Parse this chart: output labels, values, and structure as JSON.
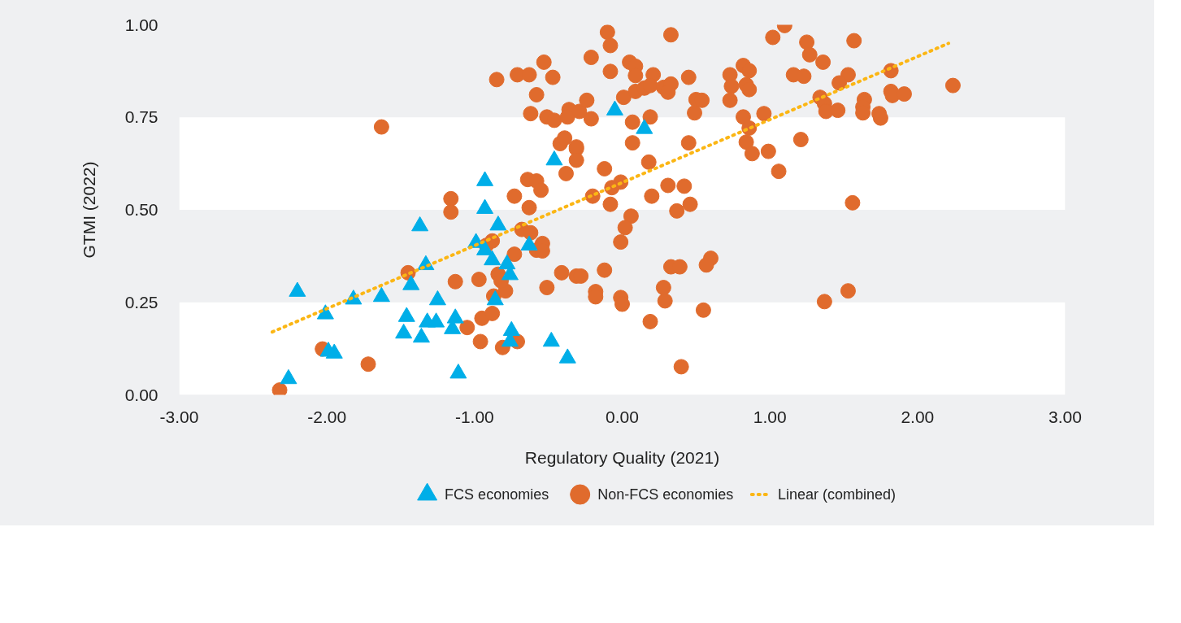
{
  "chart_data": {
    "type": "scatter",
    "xlabel": "Regulatory Quality (2021)",
    "ylabel": "GTMI (2022)",
    "xlim": [
      -3,
      3
    ],
    "xticks": [
      {
        "value": -3,
        "label": "-3.00"
      },
      {
        "value": -2,
        "label": "-2.00"
      },
      {
        "value": -1,
        "label": "-1.00"
      },
      {
        "value": 0,
        "label": "0.00"
      },
      {
        "value": 1,
        "label": "1.00"
      },
      {
        "value": 2,
        "label": "2.00"
      },
      {
        "value": 3,
        "label": "3.00"
      }
    ],
    "ylim": [
      0,
      1
    ],
    "yticks": [
      {
        "value": 0,
        "label": "0.00"
      },
      {
        "value": 0.25,
        "label": "0.25"
      },
      {
        "value": 0.5,
        "label": "0.50"
      },
      {
        "value": 0.75,
        "label": "0.75"
      },
      {
        "value": 1,
        "label": "1.00"
      }
    ],
    "bands": [
      {
        "axis": "y",
        "from": 0,
        "to": 0.25,
        "color": "#ffffff"
      },
      {
        "axis": "y",
        "from": 0.5,
        "to": 0.75,
        "color": "#ffffff"
      }
    ],
    "legend": "bottom",
    "series": [
      {
        "name": "FCS economies",
        "color": "#00aee8",
        "marker": "triangle",
        "x": [
          -2.26,
          -2.2,
          -2.01,
          -1.99,
          -1.95,
          -1.82,
          -1.63,
          -1.48,
          -1.46,
          -1.43,
          -1.37,
          -1.36,
          -1.33,
          -1.32,
          -1.25,
          -1.26,
          -1.15,
          -1.13,
          -1.11,
          -0.99,
          -0.93,
          -0.93,
          -0.93,
          -0.88,
          -0.84,
          -0.78,
          -0.76,
          -0.63,
          -0.86,
          -0.75,
          -0.76,
          -0.48,
          -0.37,
          -0.05,
          0.15,
          -0.46
        ],
        "values": [
          0.043,
          0.279,
          0.218,
          0.117,
          0.112,
          0.258,
          0.265,
          0.166,
          0.211,
          0.297,
          0.456,
          0.155,
          0.351,
          0.196,
          0.256,
          0.196,
          0.178,
          0.207,
          0.058,
          0.411,
          0.578,
          0.503,
          0.391,
          0.364,
          0.458,
          0.353,
          0.324,
          0.404,
          0.256,
          0.173,
          0.144,
          0.144,
          0.099,
          0.769,
          0.719,
          0.634
        ]
      },
      {
        "name": "Non-FCS economies",
        "color": "#e06b2d",
        "marker": "circle",
        "x": [
          -2.32,
          -2.03,
          -1.72,
          -1.45,
          -1.16,
          -1.16,
          -1.13,
          -0.97,
          -1.05,
          -0.96,
          -0.81,
          -0.71,
          -0.95,
          -0.88,
          -0.87,
          -0.79,
          -0.84,
          -0.82,
          -0.92,
          -0.88,
          -0.73,
          -0.51,
          -0.41,
          -0.73,
          -0.63,
          -0.64,
          -0.58,
          -0.55,
          -0.68,
          -0.62,
          -0.58,
          -0.54,
          -0.54,
          -0.38,
          -1.63,
          -0.31,
          -0.12,
          -0.2,
          -0.08,
          -0.01,
          -0.07,
          0.2,
          0.31,
          0.42,
          0.37,
          0.46,
          0.06,
          0.02,
          -0.01,
          0.18,
          -0.31,
          -0.28,
          -0.12,
          -0.18,
          -0.18,
          -0.01,
          0.0,
          0.33,
          0.39,
          0.6,
          0.57,
          0.28,
          0.29,
          0.55,
          0.19,
          0.4,
          -0.1,
          -0.08,
          0.33,
          -0.21,
          0.05,
          0.09,
          0.09,
          -0.08,
          0.21,
          -0.53,
          -0.85,
          -0.71,
          -0.63,
          -0.47,
          -0.58,
          -0.62,
          -0.51,
          -0.46,
          -0.36,
          -0.37,
          -0.29,
          -0.24,
          -0.21,
          0.01,
          0.09,
          0.15,
          0.19,
          0.28,
          0.33,
          0.31,
          0.45,
          0.5,
          0.54,
          0.49,
          0.07,
          0.19,
          -0.42,
          -0.39,
          -0.31,
          -0.31,
          0.07,
          0.45,
          0.73,
          0.74,
          0.73,
          1.1,
          1.02,
          1.25,
          1.27,
          1.36,
          1.57,
          0.82,
          0.86,
          0.84,
          0.86,
          1.16,
          1.23,
          1.53,
          1.47,
          1.34,
          1.37,
          1.38,
          1.46,
          1.64,
          1.63,
          1.63,
          1.74,
          1.75,
          1.82,
          1.82,
          1.83,
          1.91,
          2.24,
          0.82,
          0.96,
          0.86,
          0.84,
          0.88,
          0.99,
          1.21,
          1.06,
          1.56,
          1.53,
          1.37
        ],
        "values": [
          0.013,
          0.124,
          0.083,
          0.33,
          0.53,
          0.494,
          0.306,
          0.312,
          0.182,
          0.144,
          0.128,
          0.144,
          0.207,
          0.22,
          0.267,
          0.281,
          0.326,
          0.308,
          0.404,
          0.416,
          0.38,
          0.29,
          0.33,
          0.537,
          0.506,
          0.582,
          0.578,
          0.553,
          0.447,
          0.438,
          0.391,
          0.409,
          0.389,
          0.598,
          0.724,
          0.665,
          0.611,
          0.537,
          0.515,
          0.575,
          0.56,
          0.537,
          0.566,
          0.564,
          0.497,
          0.515,
          0.483,
          0.452,
          0.413,
          0.629,
          0.321,
          0.321,
          0.337,
          0.279,
          0.265,
          0.263,
          0.245,
          0.346,
          0.346,
          0.369,
          0.351,
          0.29,
          0.254,
          0.229,
          0.198,
          0.076,
          0.98,
          0.944,
          0.973,
          0.912,
          0.899,
          0.888,
          0.863,
          0.874,
          0.865,
          0.899,
          0.852,
          0.865,
          0.865,
          0.858,
          0.811,
          0.76,
          0.751,
          0.742,
          0.771,
          0.751,
          0.766,
          0.796,
          0.746,
          0.804,
          0.82,
          0.829,
          0.836,
          0.831,
          0.84,
          0.818,
          0.858,
          0.798,
          0.796,
          0.762,
          0.737,
          0.751,
          0.679,
          0.694,
          0.67,
          0.634,
          0.681,
          0.681,
          0.865,
          0.834,
          0.796,
          0.998,
          0.966,
          0.953,
          0.919,
          0.899,
          0.957,
          0.89,
          0.876,
          0.838,
          0.825,
          0.865,
          0.861,
          0.865,
          0.843,
          0.804,
          0.787,
          0.766,
          0.769,
          0.798,
          0.778,
          0.762,
          0.76,
          0.748,
          0.876,
          0.82,
          0.809,
          0.813,
          0.836,
          0.751,
          0.76,
          0.721,
          0.683,
          0.652,
          0.658,
          0.69,
          0.604,
          0.519,
          0.281,
          0.252
        ]
      },
      {
        "name": "Linear (combined)",
        "type": "line",
        "color": "#fbb614",
        "marker": "none",
        "line_style": "dotted",
        "x": [
          -2.37,
          2.21
        ],
        "values": [
          0.17,
          0.95
        ]
      }
    ]
  }
}
